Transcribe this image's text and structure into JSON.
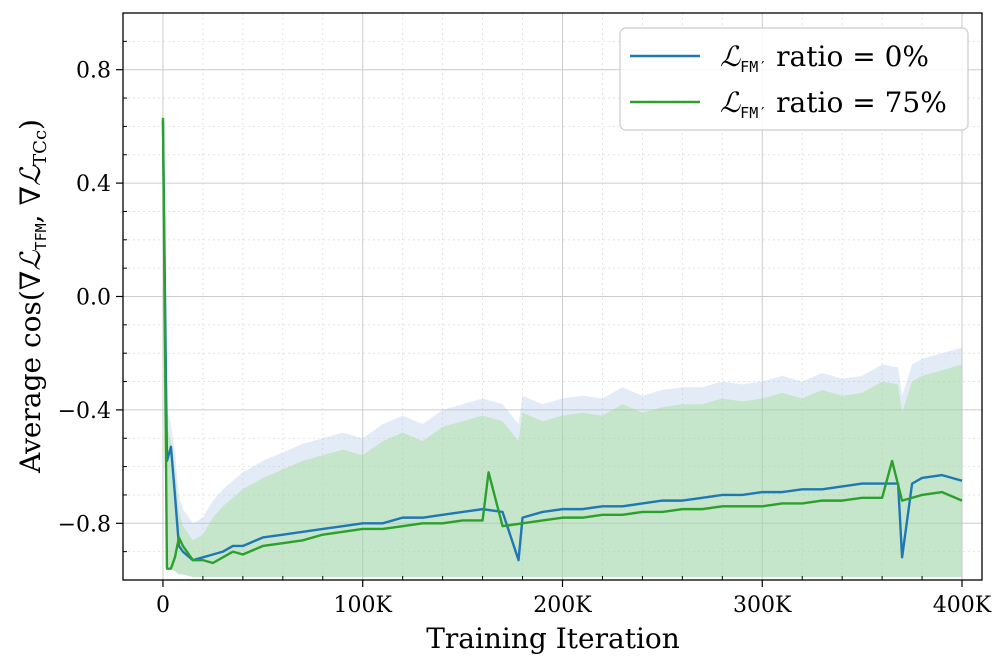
{
  "chart_data": {
    "type": "line",
    "title": "",
    "xlabel": "Training Iteration",
    "ylabel": {
      "prefix": "Average cos(∇",
      "script1": "ℒ",
      "sub1": "TFM",
      "mid": ", ∇",
      "script2": "ℒ",
      "sub2": "TCc",
      "suffix": ")"
    },
    "xlim": [
      -20000,
      410000
    ],
    "ylim": [
      -1.0,
      1.0
    ],
    "x_ticks": [
      0,
      100000,
      200000,
      300000,
      400000
    ],
    "x_tick_labels": [
      "0",
      "100K",
      "200K",
      "300K",
      "400K"
    ],
    "y_ticks": [
      -0.8,
      -0.4,
      0.0,
      0.4,
      0.8
    ],
    "y_tick_labels": [
      "−0.8",
      "−0.4",
      "0.0",
      "0.4",
      "0.8"
    ],
    "grid": true,
    "minor_grid": true,
    "legend_position": "top-right",
    "series": [
      {
        "name": "ℒFM′ ratio = 0%",
        "legend": {
          "script": "ℒ",
          "sub": "FM′",
          "text": " ratio = 0%"
        },
        "color": "#1f77b4",
        "band_color": "#aec7e8",
        "x": [
          0,
          2000,
          4000,
          6000,
          8000,
          10000,
          15000,
          20000,
          25000,
          30000,
          35000,
          40000,
          50000,
          60000,
          70000,
          80000,
          90000,
          100000,
          110000,
          120000,
          130000,
          140000,
          150000,
          160000,
          170000,
          178000,
          180000,
          190000,
          200000,
          210000,
          220000,
          230000,
          240000,
          250000,
          260000,
          270000,
          280000,
          290000,
          300000,
          310000,
          320000,
          330000,
          340000,
          350000,
          360000,
          368000,
          370000,
          375000,
          380000,
          390000,
          400000
        ],
        "y": [
          0.62,
          -0.58,
          -0.53,
          -0.7,
          -0.88,
          -0.9,
          -0.93,
          -0.92,
          -0.91,
          -0.9,
          -0.88,
          -0.88,
          -0.85,
          -0.84,
          -0.83,
          -0.82,
          -0.81,
          -0.8,
          -0.8,
          -0.78,
          -0.78,
          -0.77,
          -0.76,
          -0.75,
          -0.76,
          -0.93,
          -0.78,
          -0.76,
          -0.75,
          -0.75,
          -0.74,
          -0.74,
          -0.73,
          -0.72,
          -0.72,
          -0.71,
          -0.7,
          -0.7,
          -0.69,
          -0.69,
          -0.68,
          -0.68,
          -0.67,
          -0.66,
          -0.66,
          -0.66,
          -0.92,
          -0.66,
          -0.64,
          -0.63,
          -0.65
        ],
        "upper": [
          0.62,
          -0.4,
          -0.45,
          -0.55,
          -0.7,
          -0.75,
          -0.8,
          -0.78,
          -0.72,
          -0.68,
          -0.65,
          -0.62,
          -0.58,
          -0.55,
          -0.52,
          -0.5,
          -0.48,
          -0.5,
          -0.45,
          -0.42,
          -0.45,
          -0.4,
          -0.38,
          -0.36,
          -0.38,
          -0.45,
          -0.35,
          -0.38,
          -0.36,
          -0.35,
          -0.36,
          -0.32,
          -0.35,
          -0.33,
          -0.32,
          -0.32,
          -0.3,
          -0.31,
          -0.3,
          -0.28,
          -0.3,
          -0.27,
          -0.29,
          -0.28,
          -0.24,
          -0.25,
          -0.35,
          -0.24,
          -0.22,
          -0.2,
          -0.18
        ],
        "lower": [
          0.62,
          -0.95,
          -0.96,
          -0.97,
          -0.98,
          -0.98,
          -0.99,
          -0.99,
          -0.99,
          -0.99,
          -0.99,
          -0.99,
          -0.99,
          -0.99,
          -0.99,
          -0.99,
          -0.99,
          -0.99,
          -0.99,
          -0.99,
          -0.99,
          -0.99,
          -0.99,
          -0.99,
          -0.99,
          -0.99,
          -0.99,
          -0.99,
          -0.99,
          -0.99,
          -0.99,
          -0.99,
          -0.99,
          -0.99,
          -0.99,
          -0.99,
          -0.99,
          -0.99,
          -0.99,
          -0.99,
          -0.99,
          -0.99,
          -0.99,
          -0.99,
          -0.99,
          -0.99,
          -0.99,
          -0.99,
          -0.99,
          -0.99,
          -0.99
        ]
      },
      {
        "name": "ℒFM′ ratio = 75%",
        "legend": {
          "script": "ℒ",
          "sub": "FM′",
          "text": " ratio = 75%"
        },
        "color": "#2ca02c",
        "band_color": "#98df8a",
        "x": [
          0,
          2000,
          4000,
          6000,
          8000,
          10000,
          15000,
          20000,
          25000,
          30000,
          35000,
          40000,
          50000,
          60000,
          70000,
          80000,
          90000,
          100000,
          110000,
          120000,
          130000,
          140000,
          150000,
          160000,
          163000,
          170000,
          180000,
          190000,
          200000,
          210000,
          220000,
          230000,
          240000,
          250000,
          260000,
          270000,
          280000,
          290000,
          300000,
          310000,
          320000,
          330000,
          340000,
          350000,
          360000,
          365000,
          370000,
          380000,
          390000,
          400000
        ],
        "y": [
          0.63,
          -0.96,
          -0.96,
          -0.92,
          -0.85,
          -0.88,
          -0.93,
          -0.93,
          -0.94,
          -0.92,
          -0.9,
          -0.91,
          -0.88,
          -0.87,
          -0.86,
          -0.84,
          -0.83,
          -0.82,
          -0.82,
          -0.81,
          -0.8,
          -0.8,
          -0.79,
          -0.79,
          -0.62,
          -0.81,
          -0.8,
          -0.79,
          -0.78,
          -0.78,
          -0.77,
          -0.77,
          -0.76,
          -0.76,
          -0.75,
          -0.75,
          -0.74,
          -0.74,
          -0.74,
          -0.73,
          -0.73,
          -0.72,
          -0.72,
          -0.71,
          -0.71,
          -0.58,
          -0.72,
          -0.7,
          -0.69,
          -0.72
        ]
      }
    ]
  }
}
